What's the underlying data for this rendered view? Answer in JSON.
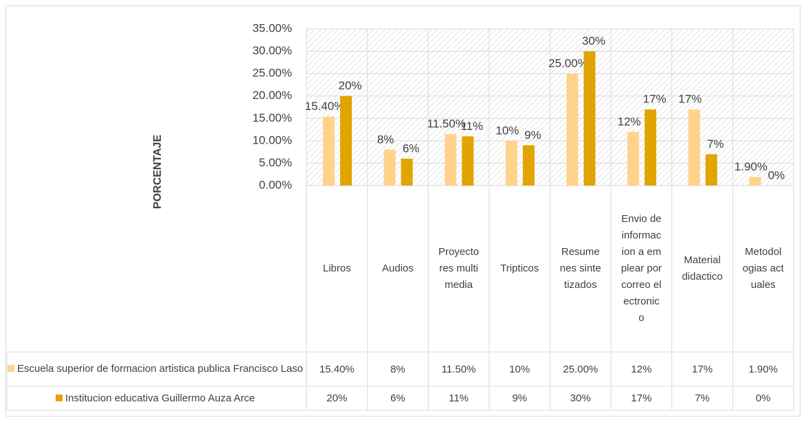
{
  "chart_data": {
    "type": "bar",
    "y_axis_label": "PORCENTAJE",
    "categories": [
      "Libros",
      "Audios",
      "Proyectores multimedia",
      "Tripticos",
      "Resumenes sintetizados",
      "Envio de informacion a emplear por correo electronico",
      "Material didactico",
      "Metodologias actuales"
    ],
    "series": [
      {
        "name": "Escuela superior de formacion artistica publica Francisco Laso",
        "color": "#ffd38c",
        "values": [
          15.4,
          8,
          11.5,
          10,
          25,
          12,
          17,
          1.9
        ],
        "value_labels": [
          "15.40%",
          "8%",
          "11.50%",
          "10%",
          "25.00%",
          "12%",
          "17%",
          "1.90%"
        ]
      },
      {
        "name": "Institucion educativa Guillermo Auza Arce",
        "color": "#e1a400",
        "values": [
          20,
          6,
          11,
          9,
          30,
          17,
          7,
          0
        ],
        "value_labels": [
          "20%",
          "6%",
          "11%",
          "9%",
          "30%",
          "17%",
          "7%",
          "0%"
        ]
      }
    ],
    "ylim": [
      0,
      35
    ],
    "yticks": [
      {
        "value": 0,
        "label": "0.00%"
      },
      {
        "value": 5,
        "label": "5.00%"
      },
      {
        "value": 10,
        "label": "10.00%"
      },
      {
        "value": 15,
        "label": "15.00%"
      },
      {
        "value": 20,
        "label": "20.00%"
      },
      {
        "value": 25,
        "label": "25.00%"
      },
      {
        "value": 30,
        "label": "30.00%"
      },
      {
        "value": 35,
        "label": "35.00%"
      }
    ],
    "grid": true,
    "data_table": true
  }
}
